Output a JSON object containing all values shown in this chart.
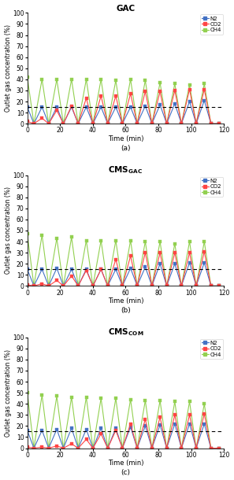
{
  "panels": [
    {
      "title": "GAC",
      "label": "(a)",
      "dashed_y": 15,
      "cycles": 13,
      "cycle_period": 9,
      "N2_peaks": [
        15,
        15,
        15,
        15,
        15,
        15,
        15,
        15,
        16,
        17,
        18,
        20,
        21
      ],
      "CO2_peaks": [
        2,
        5,
        12,
        16,
        23,
        25,
        25,
        27,
        29,
        29,
        30,
        31,
        31
      ],
      "CH4_peaks": [
        42,
        40,
        40,
        40,
        40,
        40,
        39,
        40,
        39,
        37,
        36,
        35,
        36
      ]
    },
    {
      "title": "CMS",
      "title_sub": "GAC",
      "label": "(b)",
      "dashed_y": 15,
      "cycles": 13,
      "cycle_period": 9,
      "N2_peaks": [
        15,
        15,
        16,
        15,
        15,
        15,
        15,
        16,
        17,
        20,
        20,
        21,
        21
      ],
      "CO2_peaks": [
        1,
        2,
        5,
        9,
        14,
        15,
        24,
        27,
        30,
        30,
        30,
        30,
        31
      ],
      "CH4_peaks": [
        47,
        46,
        43,
        44,
        41,
        41,
        41,
        41,
        40,
        40,
        38,
        40,
        40
      ]
    },
    {
      "title": "CMS",
      "title_sub": "COM",
      "label": "(c)",
      "dashed_y": 15,
      "cycles": 13,
      "cycle_period": 9,
      "N2_peaks": [
        16,
        16,
        17,
        18,
        17,
        18,
        18,
        19,
        20,
        21,
        22,
        22,
        22
      ],
      "CO2_peaks": [
        1,
        1,
        2,
        4,
        8,
        13,
        16,
        22,
        26,
        28,
        30,
        30,
        31
      ],
      "CH4_peaks": [
        50,
        48,
        47,
        46,
        46,
        45,
        45,
        44,
        43,
        43,
        42,
        42,
        40
      ]
    }
  ],
  "colors": {
    "N2": "#4472C4",
    "CO2": "#FF4444",
    "CH4": "#92D050"
  },
  "marker": "s",
  "markersize": 2.5,
  "linewidth": 0.8,
  "xlabel": "Time (min)",
  "ylabel": "Outlet gas concentration (%)",
  "xlim": [
    0,
    120
  ],
  "ylim": [
    0,
    100
  ],
  "yticks": [
    0,
    10,
    20,
    30,
    40,
    50,
    60,
    70,
    80,
    90,
    100
  ],
  "xticks": [
    0,
    20,
    40,
    60,
    80,
    100,
    120
  ],
  "figsize": [
    2.97,
    6.1
  ],
  "dpi": 100
}
